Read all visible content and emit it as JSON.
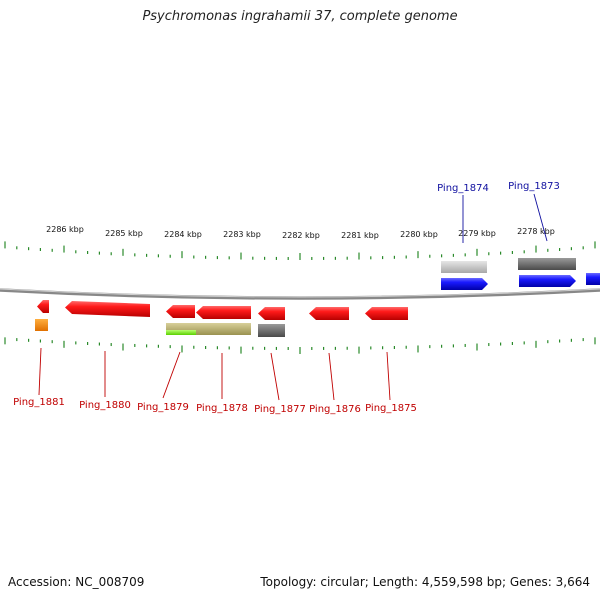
{
  "title": "Psychromonas ingrahamii 37, complete genome",
  "footer": {
    "accession": "Accession: NC_008709",
    "summary": "Topology: circular; Length: 4,559,598 bp; Genes: 3,664"
  },
  "colors": {
    "forward_gene": "#0000ee",
    "reverse_gene": "#ee0000",
    "tick": "#2a8a2a",
    "backbone": "#888888",
    "forward_label": "#1010a0",
    "reverse_label": "#c00000"
  },
  "scale_labels": [
    "2286 kbp",
    "2285 kbp",
    "2284 kbp",
    "2283 kbp",
    "2282 kbp",
    "2281 kbp",
    "2280 kbp",
    "2279 kbp",
    "2278 kbp"
  ],
  "forward_labels": [
    "Ping_1874",
    "Ping_1873"
  ],
  "reverse_labels": [
    "Ping_1881",
    "Ping_1880",
    "Ping_1879",
    "Ping_1878",
    "Ping_1877",
    "Ping_1876",
    "Ping_1875"
  ]
}
